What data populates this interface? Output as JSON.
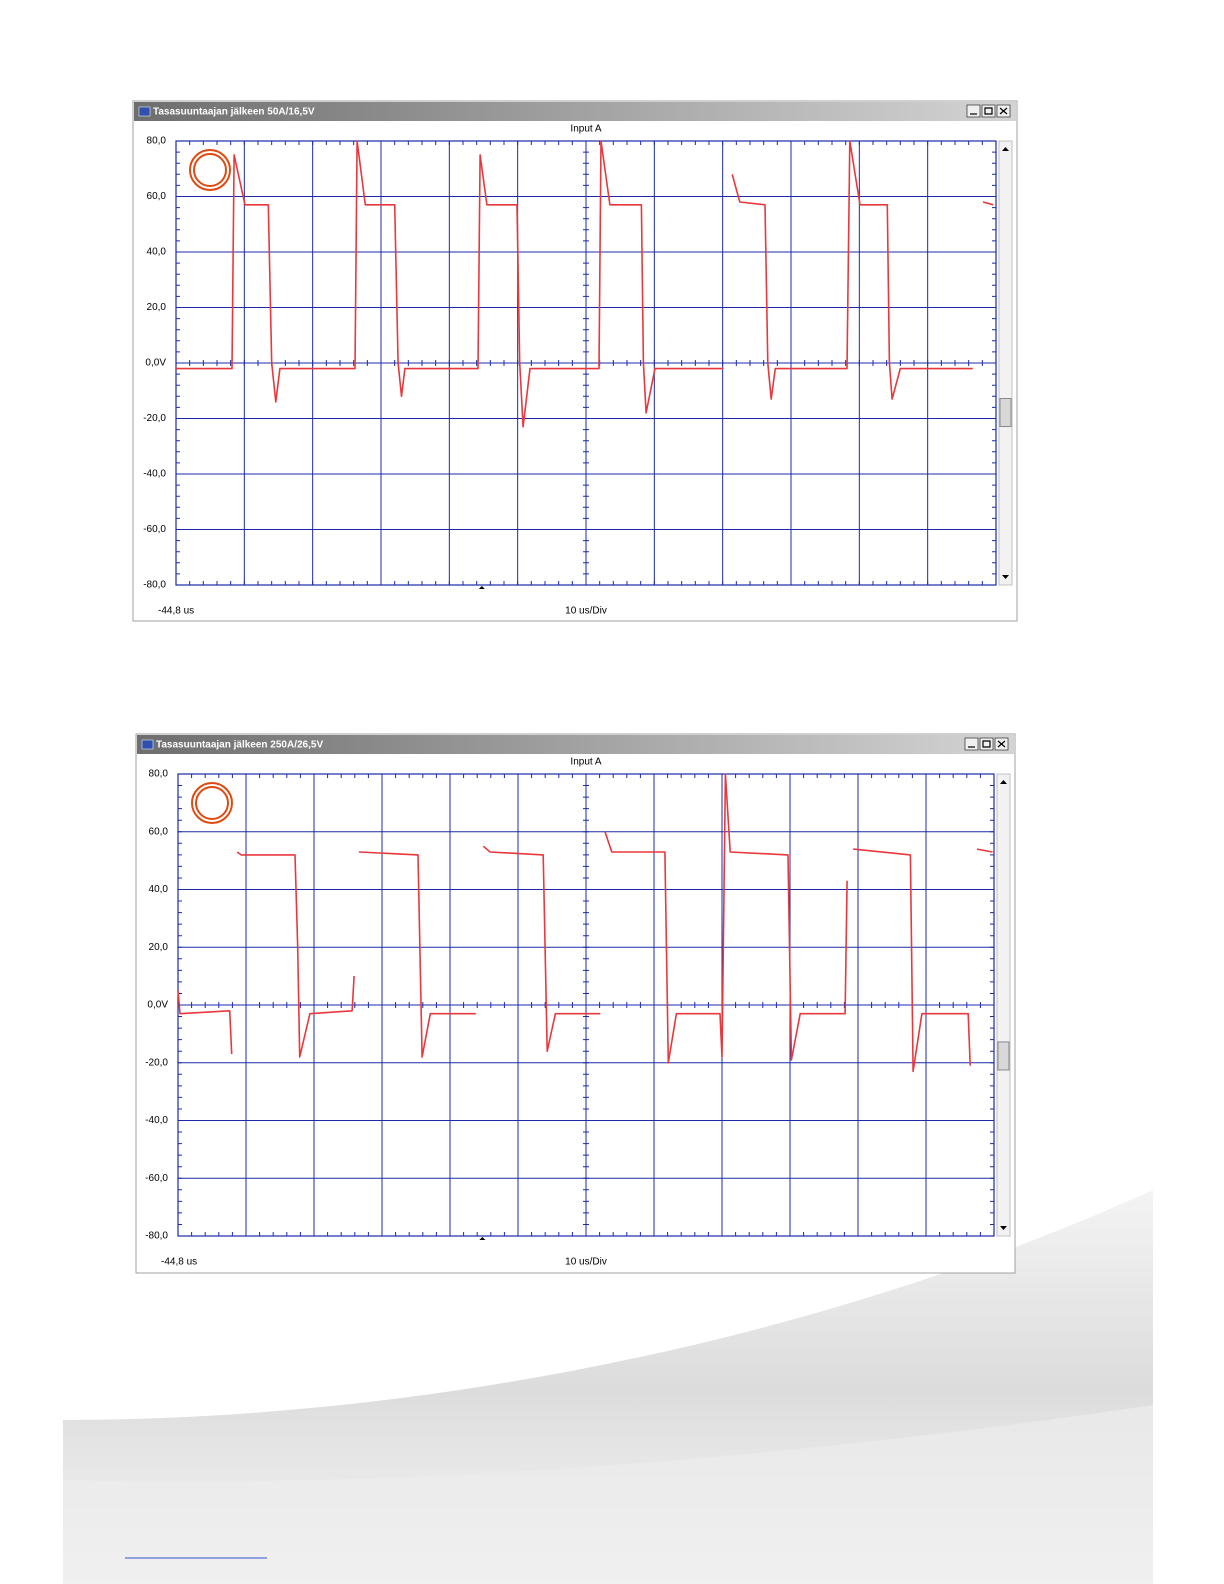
{
  "chart_data": [
    {
      "type": "line",
      "window_title": "Tasasuuntaajan jälkeen 50A/16,5V",
      "title": "Input A",
      "x_start_label": "-44,8 us",
      "x_scale_label": "10 us/Div",
      "xlim": [
        -44.8,
        75.2
      ],
      "xticks": [
        -34.8,
        -24.8,
        -14.8,
        -4.8,
        5.2,
        15.2,
        25.2,
        35.2,
        45.2,
        55.2,
        65.2
      ],
      "ylim": [
        -80,
        80
      ],
      "yticks": [
        {
          "value": -80,
          "label": "-80,0"
        },
        {
          "value": -60,
          "label": "-60,0"
        },
        {
          "value": -40,
          "label": "-40,0"
        },
        {
          "value": -20,
          "label": "-20,0"
        },
        {
          "value": 0,
          "label": "0,0V"
        },
        {
          "value": 20,
          "label": "20,0"
        },
        {
          "value": 40,
          "label": "40,0"
        },
        {
          "value": 60,
          "label": "60,0"
        },
        {
          "value": 80,
          "label": "80,0"
        }
      ],
      "grid": true,
      "series": [
        {
          "color": "#e8383d",
          "x": [
            -44.8,
            -36.6,
            -36.3,
            -34.7,
            -31.3,
            -30.8,
            -30.2,
            -29.6,
            -18.6,
            -18.3,
            -17.1,
            -12.8,
            -12.3,
            -11.8,
            -11.3,
            -0.6,
            -0.3,
            0.7,
            5.1,
            5.5,
            6.0,
            7.0,
            17.1,
            17.4,
            18.7,
            23.3,
            23.6,
            24.0,
            25.3,
            35.3,
            35.9,
            36.6,
            37.7,
            41.4,
            41.8,
            42.3,
            42.9,
            53.4,
            53.8,
            55.3,
            59.3,
            59.6,
            60.0,
            61.2,
            71.8,
            72.5,
            73.3,
            74.8
          ],
          "values": [
            -2,
            -2,
            75,
            57,
            57,
            0,
            -14,
            -2,
            -2,
            80,
            57,
            57,
            0,
            -12,
            -2,
            -2,
            75,
            57,
            57,
            0,
            -23,
            -2,
            -2,
            80,
            57,
            57,
            0,
            -18,
            -2,
            -2,
            null,
            68,
            58,
            57,
            0,
            -13,
            -2,
            -2,
            80,
            57,
            57,
            0,
            -13,
            -2,
            -2,
            null,
            58,
            57
          ]
        }
      ]
    },
    {
      "type": "line",
      "window_title": "Tasasuuntaajan jälkeen 250A/26,5V",
      "title": "Input A",
      "x_start_label": "-44,8 us",
      "x_scale_label": "10 us/Div",
      "xlim": [
        -44.8,
        75.2
      ],
      "xticks": [
        -34.8,
        -24.8,
        -14.8,
        -4.8,
        5.2,
        15.2,
        25.2,
        35.2,
        45.2,
        55.2,
        65.2
      ],
      "ylim": [
        -80,
        80
      ],
      "yticks": [
        {
          "value": -80,
          "label": "-80,0"
        },
        {
          "value": -60,
          "label": "-60,0"
        },
        {
          "value": -40,
          "label": "-40,0"
        },
        {
          "value": -20,
          "label": "-20,0"
        },
        {
          "value": 0,
          "label": "0,0V"
        },
        {
          "value": 20,
          "label": "20,0"
        },
        {
          "value": 40,
          "label": "40,0"
        },
        {
          "value": 60,
          "label": "60,0"
        },
        {
          "value": 80,
          "label": "80,0"
        }
      ],
      "grid": true,
      "series": [
        {
          "color": "#e8383d",
          "x": [
            -44.8,
            -44.5,
            -37.2,
            -36.9,
            -36.5,
            -36.1,
            -35.5,
            -27.6,
            -27.2,
            -26.9,
            -25.4,
            -19.2,
            -18.9,
            -18.5,
            -18.2,
            -9.5,
            -8.9,
            -7.7,
            -1.0,
            -0.5,
            0.1,
            1.1,
            8.9,
            9.5,
            10.7,
            17.3,
            17.6,
            18.0,
            19.0,
            26.8,
            27.3,
            28.5,
            34.9,
            35.2,
            35.7,
            36.4,
            44.9,
            45.4,
            46.7,
            53.3,
            53.6,
            54.0,
            54.5,
            62.9,
            63.3,
            64.6,
            71.4,
            71.7,
            72.2,
            72.7,
            75.0
          ],
          "values": [
            5,
            -3,
            -2,
            -17,
            null,
            53,
            52,
            52,
            20,
            -18,
            -3,
            -2,
            10,
            null,
            53,
            52,
            -18,
            -3,
            -3,
            null,
            55,
            53,
            52,
            -16,
            -3,
            -3,
            null,
            60,
            53,
            53,
            -20,
            -3,
            -3,
            -18,
            80,
            53,
            52,
            -19,
            -3,
            -3,
            43,
            null,
            54,
            52,
            -23,
            -3,
            -3,
            -21,
            null,
            54,
            53
          ]
        }
      ]
    }
  ]
}
